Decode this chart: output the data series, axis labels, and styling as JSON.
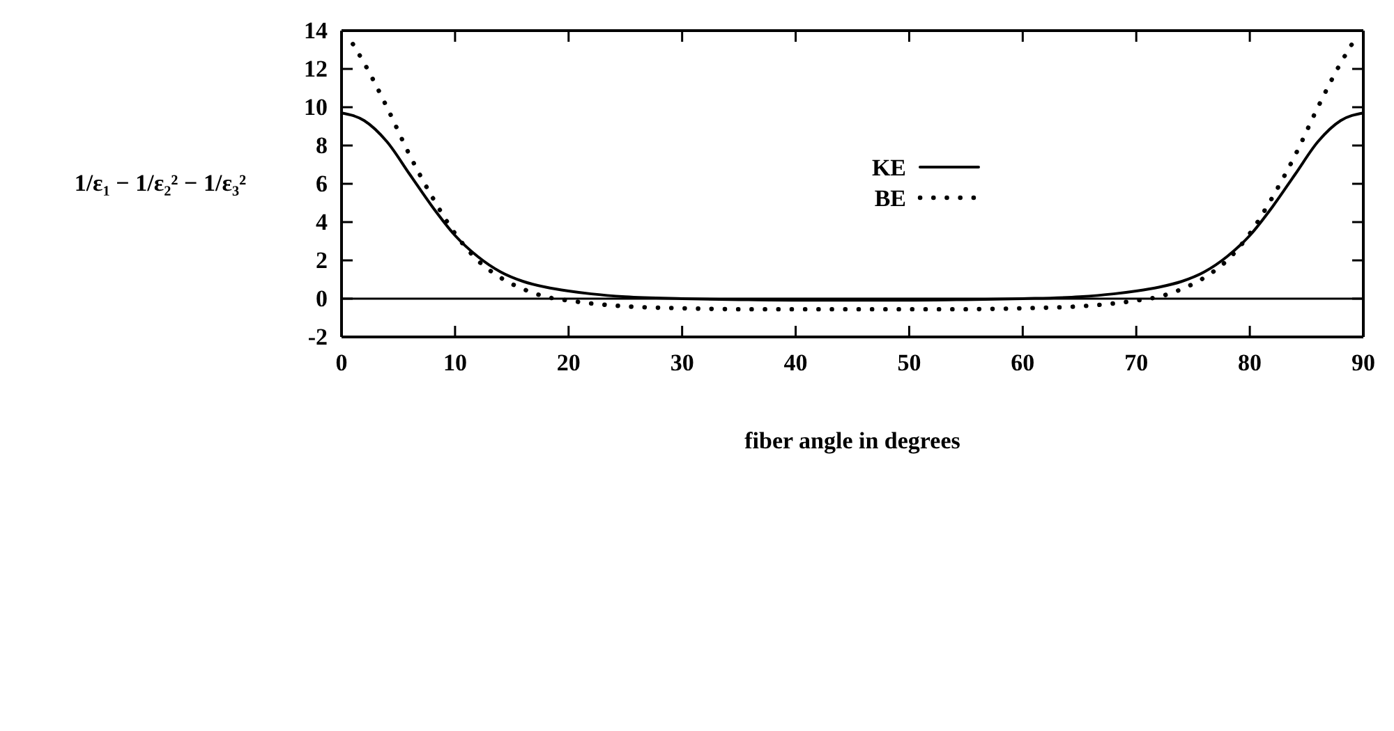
{
  "chart_data": {
    "type": "line",
    "xlabel": "fiber angle in degrees",
    "ylabel": "1/ε₁ − 1/ε₂² − 1/ε₃²",
    "xlim": [
      0,
      90
    ],
    "ylim": [
      -2,
      14
    ],
    "xticks": [
      0,
      10,
      20,
      30,
      40,
      50,
      60,
      70,
      80,
      90
    ],
    "yticks": [
      -2,
      0,
      2,
      4,
      6,
      8,
      10,
      12,
      14
    ],
    "grid": false,
    "legend": "top",
    "ref_lines": [
      {
        "axis": "y",
        "value": 0,
        "color": "#000000"
      }
    ],
    "series": [
      {
        "name": "KE",
        "color": "#000000",
        "line_style": "solid",
        "x": [
          0,
          2,
          4,
          6,
          8,
          10,
          12,
          14,
          16,
          18,
          20,
          22,
          25,
          30,
          35,
          40,
          45,
          50,
          55,
          60,
          65,
          68,
          70,
          72,
          74,
          76,
          78,
          80,
          82,
          84,
          86,
          88,
          90
        ],
        "values": [
          9.7,
          9.3,
          8.2,
          6.5,
          4.8,
          3.3,
          2.2,
          1.4,
          0.9,
          0.6,
          0.4,
          0.25,
          0.1,
          0,
          -0.05,
          -0.08,
          -0.08,
          -0.08,
          -0.05,
          0,
          0.1,
          0.25,
          0.4,
          0.6,
          0.9,
          1.4,
          2.2,
          3.3,
          4.8,
          6.5,
          8.2,
          9.3,
          9.7
        ]
      },
      {
        "name": "BE",
        "color": "#000000",
        "line_style": "dotted",
        "x": [
          1,
          2,
          4,
          6,
          8,
          10,
          12,
          14,
          16,
          18,
          20,
          22,
          25,
          30,
          35,
          40,
          45,
          50,
          55,
          60,
          65,
          68,
          70,
          72,
          74,
          76,
          78,
          80,
          82,
          84,
          86,
          88,
          89
        ],
        "values": [
          13.3,
          12.3,
          10,
          7.5,
          5.3,
          3.4,
          2,
          1.1,
          0.5,
          0.1,
          -0.1,
          -0.25,
          -0.4,
          -0.5,
          -0.55,
          -0.55,
          -0.55,
          -0.55,
          -0.55,
          -0.5,
          -0.4,
          -0.25,
          -0.1,
          0.1,
          0.5,
          1.1,
          2,
          3.4,
          5.3,
          7.5,
          10,
          12.3,
          13.3
        ]
      }
    ]
  }
}
